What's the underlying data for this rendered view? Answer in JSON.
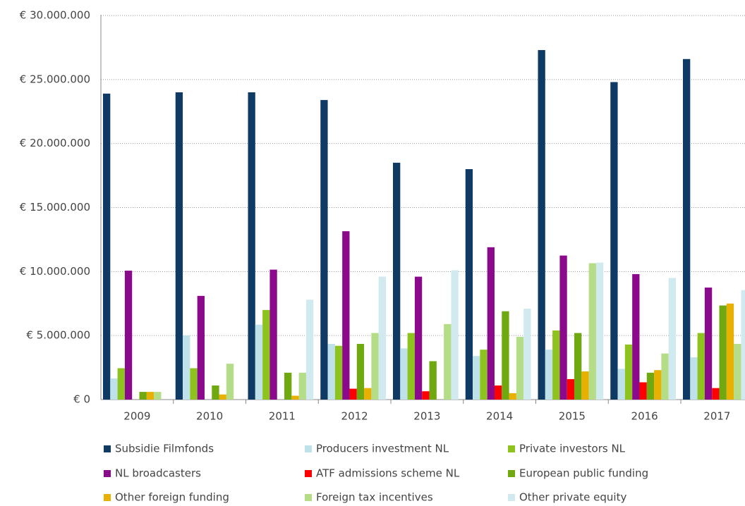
{
  "chart_data": {
    "type": "bar",
    "categories": [
      "2009",
      "2010",
      "2011",
      "2012",
      "2013",
      "2014",
      "2015",
      "2016",
      "2017"
    ],
    "series": [
      {
        "name": "Subsidie Filmfonds",
        "color": "#0e3a63",
        "values": [
          23900000,
          24000000,
          24000000,
          23400000,
          18500000,
          18000000,
          27300000,
          24800000,
          26600000
        ]
      },
      {
        "name": "Producers investment NL",
        "color": "#bfe2ea",
        "values": [
          1650000,
          5000000,
          5850000,
          4350000,
          4000000,
          3400000,
          3900000,
          2400000,
          3300000
        ]
      },
      {
        "name": "Private investors NL",
        "color": "#8dc21f",
        "values": [
          2450000,
          2450000,
          7000000,
          4200000,
          5200000,
          3900000,
          5400000,
          4300000,
          5200000
        ]
      },
      {
        "name": "NL broadcasters",
        "color": "#8b0a8b",
        "values": [
          10070000,
          8100000,
          10150000,
          13150000,
          9600000,
          11900000,
          11250000,
          9800000,
          8750000
        ]
      },
      {
        "name": "ATF admissions scheme NL",
        "color": "#ff0000",
        "values": [
          0,
          0,
          0,
          850000,
          650000,
          1100000,
          1600000,
          1350000,
          900000
        ]
      },
      {
        "name": "European public funding",
        "color": "#6fa80f",
        "values": [
          600000,
          1100000,
          2100000,
          4350000,
          3000000,
          6900000,
          5200000,
          2100000,
          7350000
        ]
      },
      {
        "name": "Other foreign funding",
        "color": "#e8b000",
        "values": [
          600000,
          400000,
          300000,
          900000,
          0,
          500000,
          2200000,
          2300000,
          7500000
        ]
      },
      {
        "name": "Foreign tax incentives",
        "color": "#b5dc86",
        "values": [
          600000,
          2800000,
          2100000,
          5200000,
          5900000,
          4900000,
          10650000,
          3600000,
          4350000
        ]
      },
      {
        "name": "Other private equity",
        "color": "#d0eaf0",
        "values": [
          0,
          0,
          7800000,
          9600000,
          10100000,
          7100000,
          10700000,
          9500000,
          8550000
        ]
      }
    ],
    "ylim": [
      0,
      30000000
    ],
    "yticks": [
      {
        "value": 0,
        "label": "€ 0"
      },
      {
        "value": 5000000,
        "label": "€ 5.000.000"
      },
      {
        "value": 10000000,
        "label": "€ 10.000.000"
      },
      {
        "value": 15000000,
        "label": "€ 15.000.000"
      },
      {
        "value": 20000000,
        "label": "€ 20.000.000"
      },
      {
        "value": 25000000,
        "label": "€ 25.000.000"
      },
      {
        "value": 30000000,
        "label": "€ 30.000.000"
      }
    ],
    "grid": true
  }
}
